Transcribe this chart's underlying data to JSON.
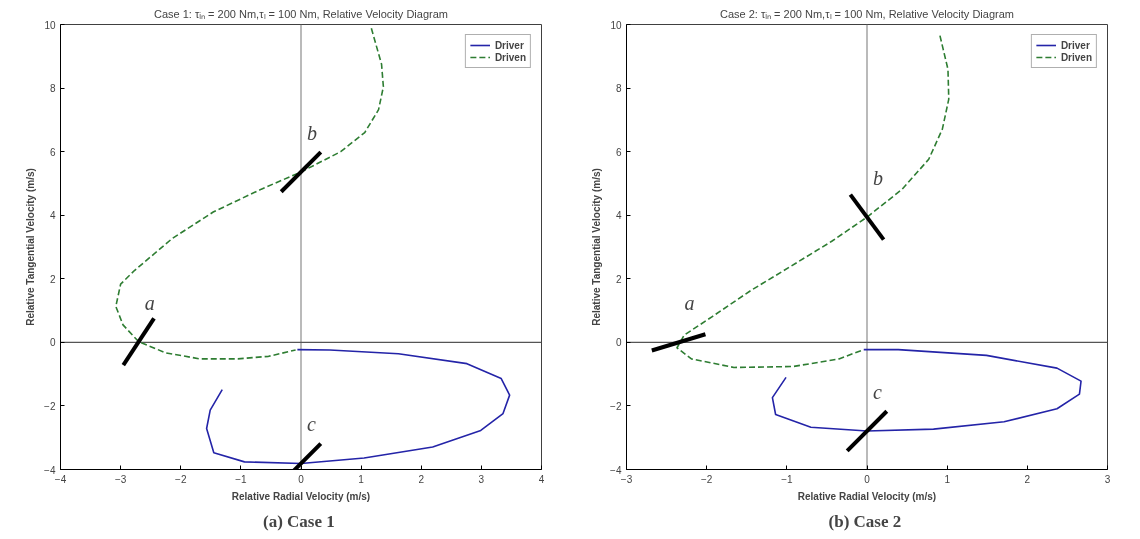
{
  "chart_data": [
    {
      "type": "line",
      "title": "Case 1: τᵢₙ = 200 Nm,τₗ = 100 Nm, Relative Velocity Diagram",
      "xlabel": "Relative Radial Velocity (m/s)",
      "ylabel": "Relative Tangential Velocity (m/s)",
      "xlim": [
        -4,
        4
      ],
      "ylim": [
        -4,
        10
      ],
      "xticks": [
        -4,
        -3,
        -2,
        -1,
        0,
        1,
        2,
        3,
        4
      ],
      "yticks": [
        -4,
        -2,
        0,
        2,
        4,
        6,
        8,
        10
      ],
      "grid": false,
      "legend": "top right",
      "ref_lines": [
        {
          "axis": "x",
          "value": 0,
          "color": "#8c8c8c"
        },
        {
          "axis": "y",
          "value": 0,
          "color": "#555555"
        }
      ],
      "series": [
        {
          "name": "Driver",
          "color": "#2424a8",
          "line_style": "solid",
          "x": [
            -0.06,
            0.48,
            1.62,
            2.76,
            3.33,
            3.47,
            3.36,
            2.99,
            2.19,
            1.05,
            0,
            -0.94,
            -1.45,
            -1.57,
            -1.51,
            -1.31
          ],
          "values": [
            -0.23,
            -0.24,
            -0.36,
            -0.67,
            -1.14,
            -1.66,
            -2.24,
            -2.77,
            -3.29,
            -3.64,
            -3.81,
            -3.76,
            -3.47,
            -2.71,
            -2.13,
            -1.49
          ]
        },
        {
          "name": "Driven",
          "color": "#2e7d32",
          "line_style": "dashed",
          "x": [
            1.17,
            1.34,
            1.37,
            1.29,
            1.06,
            0.66,
            0,
            -0.66,
            -1.46,
            -2.14,
            -2.77,
            -3.0,
            -3.08,
            -2.96,
            -2.7,
            -2.25,
            -1.68,
            -1.05,
            -0.54,
            -0.09
          ],
          "values": [
            9.88,
            8.75,
            8.04,
            7.32,
            6.6,
            6.0,
            5.36,
            4.82,
            4.1,
            3.27,
            2.26,
            1.83,
            1.13,
            0.55,
            0.02,
            -0.33,
            -0.52,
            -0.52,
            -0.44,
            -0.24
          ]
        }
      ],
      "annotations": [
        {
          "text": "a",
          "x": -2.7,
          "y": 0.02
        },
        {
          "text": "b",
          "x": 0,
          "y": 5.36
        },
        {
          "text": "c",
          "x": 0,
          "y": -3.81
        },
        "(a)  Case 1"
      ]
    },
    {
      "type": "line",
      "title": "Case 2: τᵢₙ = 200 Nm,τₗ = 100 Nm, Relative Velocity Diagram",
      "xlabel": "Relative Radial Velocity (m/s)",
      "ylabel": "Relative Tangential Velocity (m/s)",
      "xlim": [
        -3,
        3
      ],
      "ylim": [
        -4,
        10
      ],
      "xticks": [
        -3,
        -2,
        -1,
        0,
        1,
        2,
        3
      ],
      "yticks": [
        -4,
        -2,
        0,
        2,
        4,
        6,
        8,
        10
      ],
      "grid": false,
      "legend": "top right",
      "ref_lines": [
        {
          "axis": "x",
          "value": 0,
          "color": "#8c8c8c"
        },
        {
          "axis": "y",
          "value": 0,
          "color": "#555555"
        }
      ],
      "series": [
        {
          "name": "Driver",
          "color": "#2424a8",
          "line_style": "solid",
          "x": [
            -0.04,
            0.39,
            1.49,
            2.37,
            2.67,
            2.65,
            2.37,
            1.71,
            0.83,
            0,
            -0.7,
            -1.14,
            -1.18,
            -1.01
          ],
          "values": [
            -0.23,
            -0.23,
            -0.41,
            -0.81,
            -1.22,
            -1.63,
            -2.09,
            -2.5,
            -2.73,
            -2.79,
            -2.67,
            -2.27,
            -1.74,
            -1.1
          ]
        },
        {
          "name": "Driven",
          "color": "#2e7d32",
          "line_style": "dashed",
          "x": [
            0.91,
            1.01,
            1.02,
            0.94,
            0.77,
            0.44,
            0,
            -0.44,
            -1.05,
            -1.45,
            -1.93,
            -2.28,
            -2.37,
            -2.19,
            -1.66,
            -0.92,
            -0.35,
            -0.04
          ],
          "values": [
            9.65,
            8.59,
            7.65,
            6.71,
            5.76,
            4.82,
            3.94,
            3.18,
            2.24,
            1.63,
            0.81,
            0.23,
            -0.17,
            -0.52,
            -0.79,
            -0.76,
            -0.52,
            -0.23
          ]
        }
      ],
      "annotations": [
        {
          "text": "a",
          "x": -2.35,
          "y": 0.0
        },
        {
          "text": "b",
          "x": 0,
          "y": 3.94
        },
        {
          "text": "c",
          "x": 0,
          "y": -2.79
        },
        "(b)  Case 2"
      ]
    }
  ]
}
